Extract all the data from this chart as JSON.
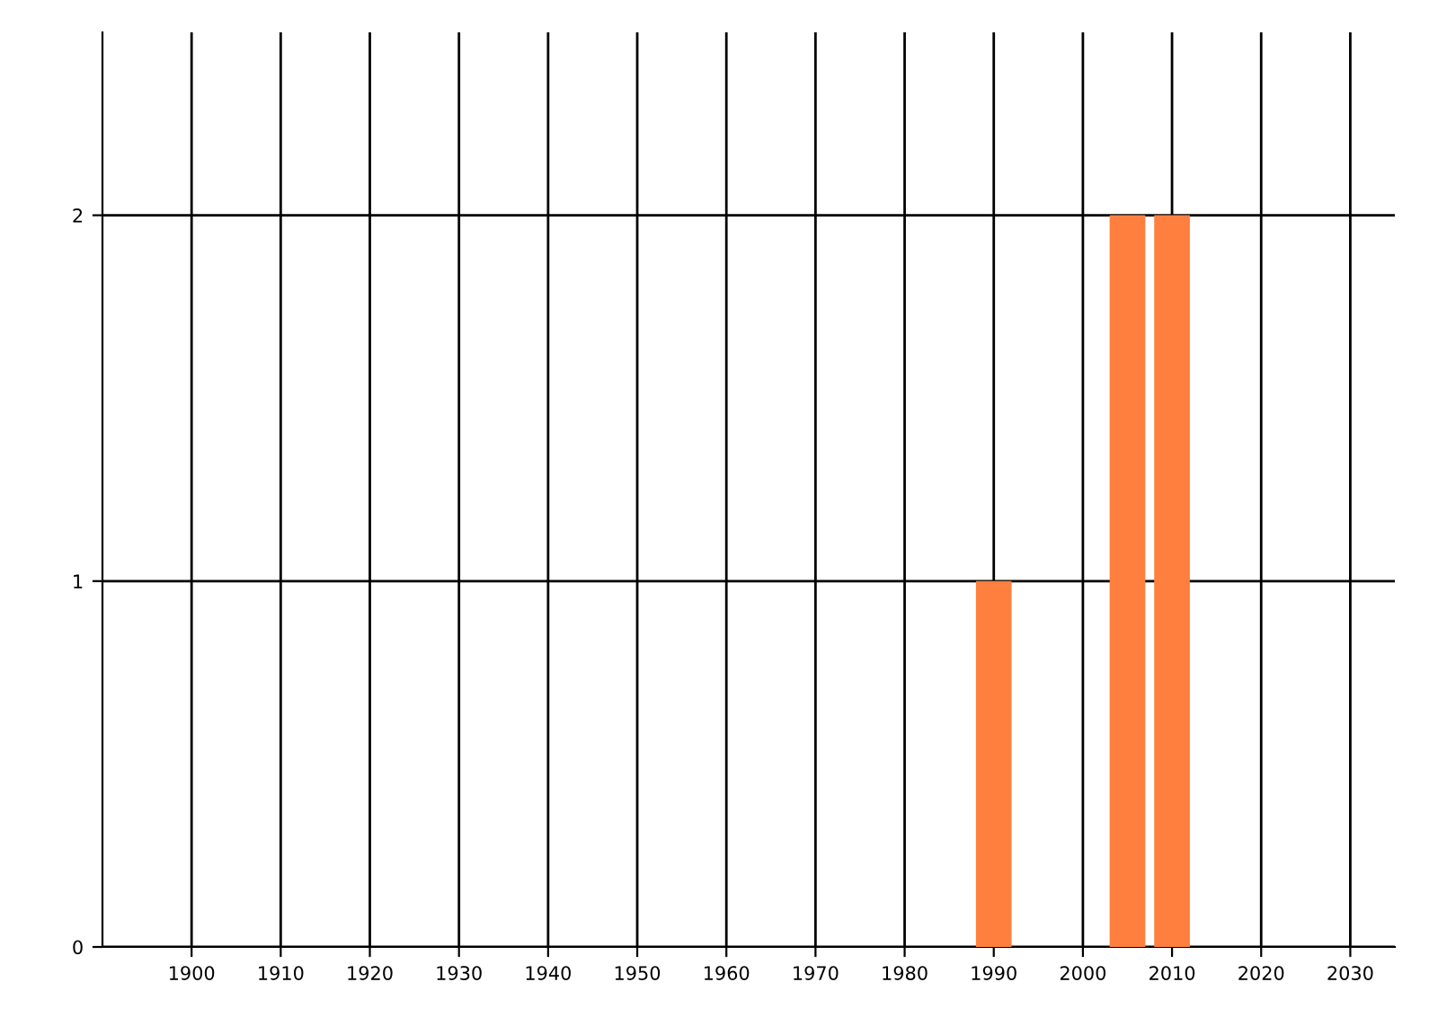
{
  "chart_data": {
    "type": "bar",
    "x": [
      1990,
      2005,
      2010
    ],
    "values": [
      1,
      2,
      2
    ],
    "color": "#ff7f3f",
    "xlim": [
      1890,
      2035
    ],
    "xticks": [
      1900,
      1910,
      1920,
      1930,
      1940,
      1950,
      1960,
      1970,
      1980,
      1990,
      2000,
      2010,
      2020,
      2030
    ],
    "ylim": [
      0,
      2.5
    ],
    "yticks": [
      0,
      1,
      2
    ],
    "grid": true
  }
}
